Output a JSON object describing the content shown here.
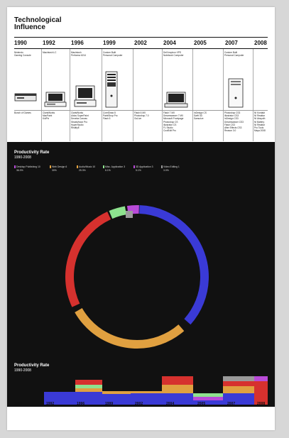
{
  "title": "Technological\nInfluence",
  "years": [
    "1990",
    "1992",
    "1996",
    "1999",
    "2002",
    "2004",
    "2005",
    "2007",
    "2008"
  ],
  "devices": [
    {
      "year": "1990",
      "label": "Nintendo\nGaming Console",
      "icon": "console-icon"
    },
    {
      "year": "1992",
      "label": "Macintosh LC",
      "icon": "mac-lc-icon"
    },
    {
      "year": "1996",
      "label": "Macintosh\nPerforma 6214",
      "icon": "performa-icon"
    },
    {
      "year": "1999",
      "label": "Custom Built\nPersonal Computer",
      "icon": "tower-pc-icon"
    },
    {
      "year": "2002",
      "label": "",
      "icon": ""
    },
    {
      "year": "2004",
      "label": "Dell Inspiron XPS\nNotebook Computer",
      "icon": "laptop-icon"
    },
    {
      "year": "2005",
      "label": "",
      "icon": ""
    },
    {
      "year": "2007",
      "label": "Custom Built\nPersonal Computer",
      "icon": "tower-pc-2-icon"
    },
    {
      "year": "2008",
      "label": "",
      "icon": ""
    }
  ],
  "software": [
    "Bunch of Games",
    "ClarisWorks\nMacPaint\nKidPix",
    "ClarisWorks\nAldus SuperPaint\nDeneba Canvas\nStrataVision Pro\nHyperStudio\nRealityE",
    "CorelDraw 8\nPaintShop Pro\nFlash 5",
    "Flash 6 MX\nPhotoshop 7.0\nGoLive",
    "Flash 7 MX\nDreamweaver 7 MX\nMicrosoft Frontpage\nPhotoshop CS\nIllustrator CS\nFL Studio\nCoolEdit Pro",
    "InDesign CS\nSwift 3D\nSamurize",
    "Photoshop CS3\nIllustrator CS3\nInDesign CS3\nDreamweaver CS3\nFlash CS3\nAfter Effects CS3\nReason 3.0",
    "NI Kontakt\nNI Reaktor\nNI Absynth\nNI Battery\nNI Reaktor\nPro Tools\nMaya 2008"
  ],
  "productivity": {
    "title": "Productivity Rate",
    "subtitle": "1990-2008",
    "legend": [
      {
        "name": "Desktop Publishing 10",
        "value": "36.0%",
        "color": "#3a3ad6"
      },
      {
        "name": "Web Design 6",
        "value": "30%",
        "color": "#d79a47"
      },
      {
        "name": "Audio/Music 10",
        "value": "25.3%",
        "color": "#e0a040"
      },
      {
        "name": "Misc. Application 3",
        "value": "6.1%",
        "color": "#8ee28e"
      },
      {
        "name": "3D Application 3",
        "value": "5.1%",
        "color": "#b94bd8"
      },
      {
        "name": "Video Editing 1",
        "value": "3.0%",
        "color": "#9a9a9a"
      }
    ]
  },
  "bottom": {
    "title": "Productivity Rate",
    "subtitle": "1990-2008"
  },
  "bottom_years": [
    "1990",
    "1992",
    "1996",
    "1999",
    "2002",
    "2004",
    "2005",
    "2007",
    "2008"
  ],
  "colors": {
    "blue": "#3a3ad6",
    "red": "#d6312e",
    "orange": "#e0a040",
    "green": "#8ee28e",
    "purple": "#b94bd8",
    "gray": "#9a9a9a",
    "black": "#111111"
  }
}
